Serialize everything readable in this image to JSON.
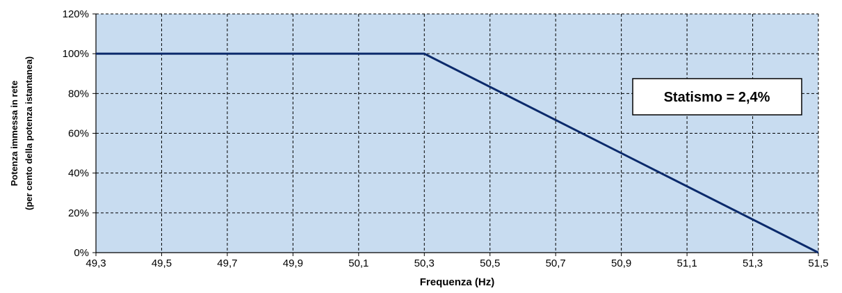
{
  "chart_data": {
    "type": "line",
    "title": "",
    "xlabel": "Frequenza (Hz)",
    "ylabel_lines": [
      "Potenza immessa in rete",
      "(per cento della potenza istantanea)"
    ],
    "xlim": [
      49.3,
      51.5
    ],
    "ylim": [
      0,
      120
    ],
    "x_ticks": [
      49.3,
      49.5,
      49.7,
      49.9,
      50.1,
      50.3,
      50.5,
      50.7,
      50.9,
      51.1,
      51.3,
      51.5
    ],
    "x_tick_labels": [
      "49,3",
      "49,5",
      "49,7",
      "49,9",
      "50,1",
      "50,3",
      "50,5",
      "50,7",
      "50,9",
      "51,1",
      "51,3",
      "51,5"
    ],
    "y_ticks": [
      0,
      20,
      40,
      60,
      80,
      100,
      120
    ],
    "y_tick_labels": [
      "0%",
      "20%",
      "40%",
      "60%",
      "80%",
      "100%",
      "120%"
    ],
    "grid": true,
    "series": [
      {
        "x": [
          49.3,
          50.3,
          51.5
        ],
        "y": [
          100,
          100,
          0
        ]
      }
    ],
    "annotation": {
      "text": "Statismo = 2,4%",
      "position": "top-right"
    },
    "colors": {
      "plot_background": "#c8dcf0",
      "line": "#0b2a6b",
      "grid": "#000000",
      "axis": "#000000"
    }
  }
}
